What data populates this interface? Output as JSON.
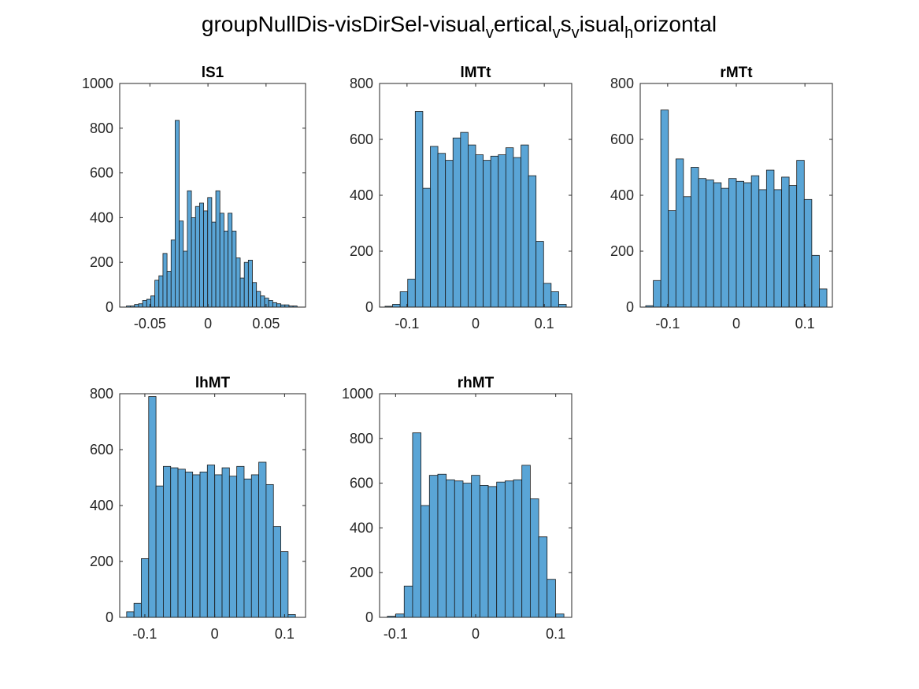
{
  "figure": {
    "title_main": "groupNullDis-visDirSel-visual",
    "title_segments": [
      {
        "text": "groupNullDis-visDirSel-visual",
        "sub": false
      },
      {
        "text": "v",
        "sub": true
      },
      {
        "text": "ertical",
        "sub": false
      },
      {
        "text": "v",
        "sub": true
      },
      {
        "text": "s",
        "sub": false
      },
      {
        "text": "v",
        "sub": true
      },
      {
        "text": "isual",
        "sub": false
      },
      {
        "text": "h",
        "sub": true
      },
      {
        "text": "orizontal",
        "sub": false
      }
    ]
  },
  "colors": {
    "bar_fill": "#5AA5D6",
    "bar_edge": "#1a1a1a",
    "axis": "#262626"
  },
  "chart_data": [
    {
      "type": "bar",
      "title": "lS1",
      "xlim": [
        -0.076,
        0.084
      ],
      "ylim": [
        0,
        1000
      ],
      "xticks": [
        -0.05,
        0,
        0.05
      ],
      "xtick_labels": [
        "-0.05",
        "0",
        "0.05"
      ],
      "yticks": [
        0,
        200,
        400,
        600,
        800,
        1000
      ],
      "ytick_labels": [
        "0",
        "200",
        "400",
        "600",
        "800",
        "1000"
      ],
      "bin_width": 0.0035,
      "bin_centers": [
        -0.0685,
        -0.065,
        -0.0615,
        -0.058,
        -0.0545,
        -0.051,
        -0.0475,
        -0.044,
        -0.0405,
        -0.037,
        -0.0335,
        -0.03,
        -0.0265,
        -0.023,
        -0.0195,
        -0.016,
        -0.0125,
        -0.009,
        -0.0055,
        -0.002,
        0.0015,
        0.005,
        0.0085,
        0.012,
        0.0155,
        0.019,
        0.0225,
        0.026,
        0.0295,
        0.033,
        0.0365,
        0.04,
        0.0435,
        0.047,
        0.0505,
        0.054,
        0.0575,
        0.061,
        0.0645,
        0.068,
        0.0715,
        0.075
      ],
      "values": [
        5,
        5,
        12,
        15,
        30,
        35,
        50,
        120,
        140,
        240,
        160,
        300,
        835,
        385,
        250,
        520,
        400,
        450,
        465,
        430,
        490,
        380,
        520,
        420,
        340,
        420,
        340,
        220,
        130,
        200,
        210,
        110,
        70,
        50,
        40,
        30,
        20,
        15,
        10,
        10,
        5,
        5
      ]
    },
    {
      "type": "bar",
      "title": "lMTt",
      "xlim": [
        -0.14,
        0.14
      ],
      "ylim": [
        0,
        800
      ],
      "xticks": [
        -0.1,
        0,
        0.1
      ],
      "xtick_labels": [
        "-0.1",
        "0",
        "0.1"
      ],
      "yticks": [
        0,
        200,
        400,
        600,
        800
      ],
      "ytick_labels": [
        "0",
        "200",
        "400",
        "600",
        "800"
      ],
      "bin_width": 0.011,
      "bin_centers": [
        -0.1265,
        -0.1155,
        -0.1045,
        -0.0935,
        -0.0825,
        -0.0715,
        -0.0605,
        -0.0495,
        -0.0385,
        -0.0275,
        -0.0165,
        -0.0055,
        0.0055,
        0.0165,
        0.0275,
        0.0385,
        0.0495,
        0.0605,
        0.0715,
        0.0825,
        0.0935,
        0.1045,
        0.1155,
        0.1265
      ],
      "values": [
        3,
        10,
        55,
        100,
        700,
        425,
        575,
        550,
        525,
        605,
        625,
        580,
        545,
        525,
        540,
        545,
        570,
        535,
        580,
        470,
        235,
        85,
        55,
        10
      ]
    },
    {
      "type": "bar",
      "title": "rMTt",
      "xlim": [
        -0.14,
        0.14
      ],
      "ylim": [
        0,
        800
      ],
      "xticks": [
        -0.1,
        0,
        0.1
      ],
      "xtick_labels": [
        "-0.1",
        "0",
        "0.1"
      ],
      "yticks": [
        0,
        200,
        400,
        600,
        800
      ],
      "ytick_labels": [
        "0",
        "200",
        "400",
        "600",
        "800"
      ],
      "bin_width": 0.011,
      "bin_centers": [
        -0.1265,
        -0.1155,
        -0.1045,
        -0.0935,
        -0.0825,
        -0.0715,
        -0.0605,
        -0.0495,
        -0.0385,
        -0.0275,
        -0.0165,
        -0.0055,
        0.0055,
        0.0165,
        0.0275,
        0.0385,
        0.0495,
        0.0605,
        0.0715,
        0.0825,
        0.0935,
        0.1045,
        0.1155,
        0.1265
      ],
      "values": [
        5,
        95,
        705,
        345,
        530,
        395,
        500,
        460,
        455,
        445,
        425,
        460,
        450,
        445,
        470,
        420,
        490,
        420,
        465,
        435,
        525,
        385,
        185,
        65
      ]
    },
    {
      "type": "bar",
      "title": "lhMT",
      "xlim": [
        -0.136,
        0.13
      ],
      "ylim": [
        0,
        800
      ],
      "xticks": [
        -0.1,
        0,
        0.1
      ],
      "xtick_labels": [
        "-0.1",
        "0",
        "0.1"
      ],
      "yticks": [
        0,
        200,
        400,
        600,
        800
      ],
      "ytick_labels": [
        "0",
        "200",
        "400",
        "600",
        "800"
      ],
      "bin_width": 0.0105,
      "bin_centers": [
        -0.1208,
        -0.1103,
        -0.0998,
        -0.0893,
        -0.0788,
        -0.0683,
        -0.0578,
        -0.0473,
        -0.0368,
        -0.0263,
        -0.0158,
        -0.0053,
        0.0053,
        0.0158,
        0.0263,
        0.0368,
        0.0473,
        0.0578,
        0.0683,
        0.0788,
        0.0893,
        0.0998,
        0.1103
      ],
      "values": [
        20,
        50,
        210,
        790,
        470,
        540,
        535,
        530,
        520,
        510,
        520,
        545,
        510,
        535,
        505,
        540,
        495,
        510,
        555,
        475,
        325,
        235,
        10
      ]
    },
    {
      "type": "bar",
      "title": "rhMT",
      "xlim": [
        -0.12,
        0.12
      ],
      "ylim": [
        0,
        1000
      ],
      "xticks": [
        -0.1,
        0,
        0.1
      ],
      "xtick_labels": [
        "-0.1",
        "0",
        "0.1"
      ],
      "yticks": [
        0,
        200,
        400,
        600,
        800,
        1000
      ],
      "ytick_labels": [
        "0",
        "200",
        "400",
        "600",
        "800",
        "1000"
      ],
      "bin_width": 0.0105,
      "bin_centers": [
        -0.105,
        -0.0945,
        -0.084,
        -0.0735,
        -0.063,
        -0.0525,
        -0.042,
        -0.0315,
        -0.021,
        -0.0105,
        0.0,
        0.0105,
        0.021,
        0.0315,
        0.042,
        0.0525,
        0.063,
        0.0735,
        0.084,
        0.0945,
        0.105
      ],
      "values": [
        5,
        15,
        140,
        825,
        500,
        635,
        640,
        615,
        610,
        600,
        635,
        590,
        585,
        605,
        610,
        615,
        680,
        530,
        360,
        170,
        15
      ]
    }
  ]
}
